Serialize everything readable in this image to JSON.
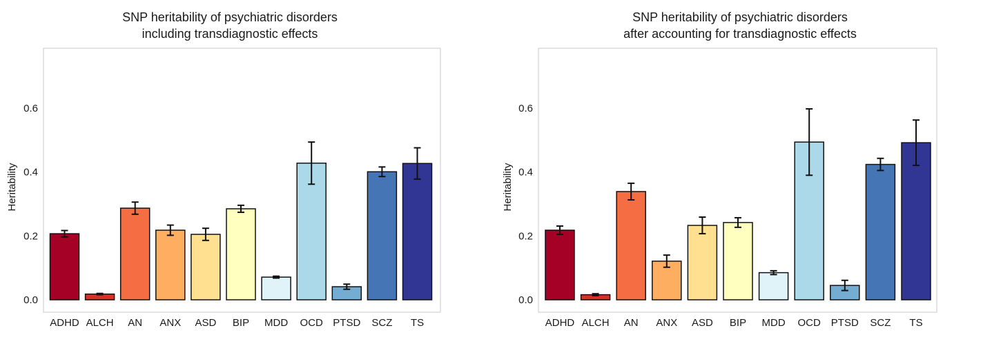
{
  "chart_data": [
    {
      "type": "bar",
      "title": [
        "SNP heritability of psychiatric disorders",
        "including transdiagnostic effects"
      ],
      "ylabel": "Heritability",
      "xlabel": "",
      "ylim": [
        -0.04,
        0.78
      ],
      "yticks": [
        0.0,
        0.2,
        0.4,
        0.6
      ],
      "ytick_labels": [
        "0.0",
        "0.2",
        "0.4",
        "0.6"
      ],
      "grid": false,
      "categories": [
        "ADHD",
        "ALCH",
        "AN",
        "ANX",
        "ASD",
        "BIP",
        "MDD",
        "OCD",
        "PTSD",
        "SCZ",
        "TS"
      ],
      "values": [
        0.207,
        0.018,
        0.287,
        0.218,
        0.205,
        0.285,
        0.071,
        0.428,
        0.041,
        0.401,
        0.427
      ],
      "errors": [
        0.01,
        0.002,
        0.019,
        0.016,
        0.019,
        0.011,
        0.003,
        0.066,
        0.008,
        0.015,
        0.049
      ],
      "colors": [
        "#a50026",
        "#d73027",
        "#f46d43",
        "#fdae61",
        "#fee090",
        "#ffffbf",
        "#e0f3f8",
        "#abd9e9",
        "#74add1",
        "#4575b4",
        "#313695"
      ]
    },
    {
      "type": "bar",
      "title": [
        "SNP heritability of psychiatric disorders",
        "after accounting for transdiagnostic effects"
      ],
      "ylabel": "Heritability",
      "xlabel": "",
      "ylim": [
        -0.04,
        0.78
      ],
      "yticks": [
        0.0,
        0.2,
        0.4,
        0.6
      ],
      "ytick_labels": [
        "0.0",
        "0.2",
        "0.4",
        "0.6"
      ],
      "grid": false,
      "categories": [
        "ADHD",
        "ALCH",
        "AN",
        "ANX",
        "ASD",
        "BIP",
        "MDD",
        "OCD",
        "PTSD",
        "SCZ",
        "TS"
      ],
      "values": [
        0.218,
        0.016,
        0.339,
        0.121,
        0.233,
        0.242,
        0.085,
        0.494,
        0.045,
        0.424,
        0.492
      ],
      "errors": [
        0.013,
        0.003,
        0.026,
        0.019,
        0.026,
        0.015,
        0.006,
        0.104,
        0.016,
        0.019,
        0.071
      ],
      "colors": [
        "#a50026",
        "#d73027",
        "#f46d43",
        "#fdae61",
        "#fee090",
        "#ffffbf",
        "#e0f3f8",
        "#abd9e9",
        "#74add1",
        "#4575b4",
        "#313695"
      ]
    }
  ]
}
